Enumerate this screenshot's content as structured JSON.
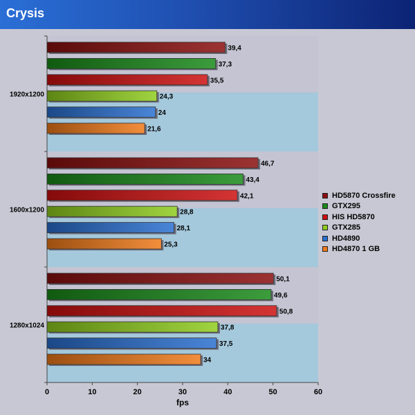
{
  "chart_data": {
    "type": "bar",
    "orientation": "horizontal",
    "title": "Crysis",
    "xlabel": "fps",
    "xlim": [
      0,
      60
    ],
    "xticks": [
      0,
      10,
      20,
      30,
      40,
      50,
      60
    ],
    "categories": [
      "1920x1200",
      "1600x1200",
      "1280x1024"
    ],
    "series": [
      {
        "name": "HD5870 Crossfire",
        "color": "#8b0f0f",
        "values": [
          39.4,
          46.7,
          50.1
        ],
        "labels": [
          "39,4",
          "46,7",
          "50,1"
        ]
      },
      {
        "name": "GTX295",
        "color": "#1a8a1a",
        "values": [
          37.3,
          43.4,
          49.6
        ],
        "labels": [
          "37,3",
          "43,4",
          "49,6"
        ]
      },
      {
        "name": "HIS HD5870",
        "color": "#cc1010",
        "values": [
          35.5,
          42.1,
          50.8
        ],
        "labels": [
          "35,5",
          "42,1",
          "50,8"
        ]
      },
      {
        "name": "GTX285",
        "color": "#8fcc1e",
        "values": [
          24.3,
          28.8,
          37.8
        ],
        "labels": [
          "24,3",
          "28,8",
          "37,8"
        ]
      },
      {
        "name": "HD4890",
        "color": "#2a6fd0",
        "values": [
          24,
          28.1,
          37.5
        ],
        "labels": [
          "24",
          "28,1",
          "37,5"
        ]
      },
      {
        "name": "HD4870 1 GB",
        "color": "#f07a1a",
        "values": [
          21.6,
          25.3,
          34
        ],
        "labels": [
          "21,6",
          "25,3",
          "34"
        ]
      }
    ],
    "legend_position": "right",
    "grid": false
  }
}
